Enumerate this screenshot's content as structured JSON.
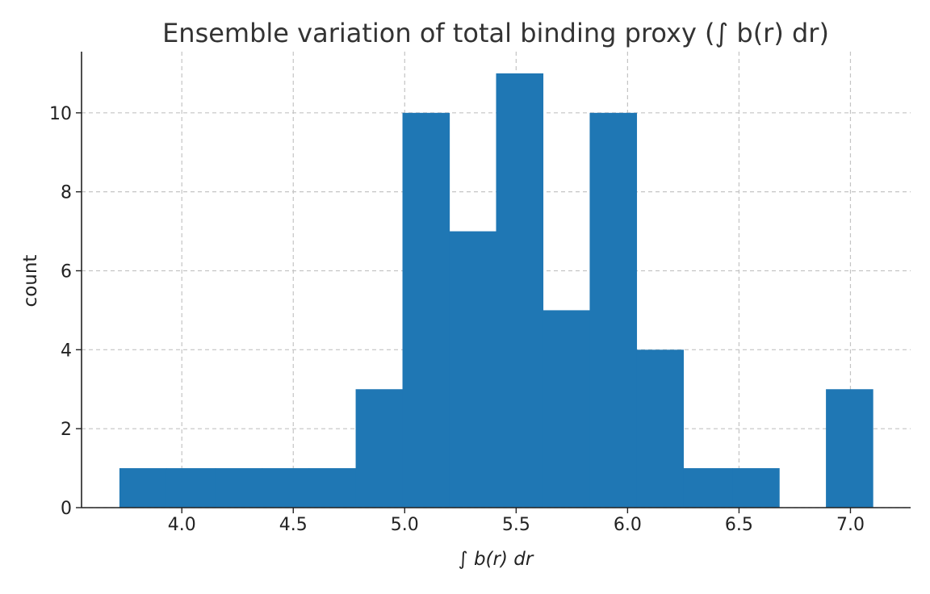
{
  "chart_data": {
    "type": "bar",
    "title": "Ensemble variation of total binding proxy (∫ b(r) dr)",
    "xlabel": "∫ b(r) dr",
    "ylabel": "count",
    "xlim": [
      3.55,
      7.27
    ],
    "ylim": [
      0,
      11.55
    ],
    "xticks": [
      "4.0",
      "4.5",
      "5.0",
      "5.5",
      "6.0",
      "6.5",
      "7.0"
    ],
    "xtick_values": [
      4.0,
      4.5,
      5.0,
      5.5,
      6.0,
      6.5,
      7.0
    ],
    "yticks": [
      "0",
      "2",
      "4",
      "6",
      "8",
      "10"
    ],
    "ytick_values": [
      0,
      2,
      4,
      6,
      8,
      10
    ],
    "grid": true,
    "bar_color": "#1f77b4",
    "bins": [
      {
        "x0": 3.72,
        "x1": 3.93,
        "count": 1
      },
      {
        "x0": 3.93,
        "x1": 4.15,
        "count": 1
      },
      {
        "x0": 4.15,
        "x1": 4.36,
        "count": 1
      },
      {
        "x0": 4.36,
        "x1": 4.57,
        "count": 1
      },
      {
        "x0": 4.57,
        "x1": 4.78,
        "count": 1
      },
      {
        "x0": 4.78,
        "x1": 4.99,
        "count": 3
      },
      {
        "x0": 4.99,
        "x1": 5.2,
        "count": 10
      },
      {
        "x0": 5.2,
        "x1": 5.41,
        "count": 7
      },
      {
        "x0": 5.41,
        "x1": 5.62,
        "count": 11
      },
      {
        "x0": 5.62,
        "x1": 5.83,
        "count": 5
      },
      {
        "x0": 5.83,
        "x1": 6.04,
        "count": 10
      },
      {
        "x0": 6.04,
        "x1": 6.25,
        "count": 4
      },
      {
        "x0": 6.25,
        "x1": 6.47,
        "count": 1
      },
      {
        "x0": 6.47,
        "x1": 6.68,
        "count": 1
      },
      {
        "x0": 6.68,
        "x1": 6.89,
        "count": 0
      },
      {
        "x0": 6.89,
        "x1": 7.1,
        "count": 3
      }
    ]
  }
}
